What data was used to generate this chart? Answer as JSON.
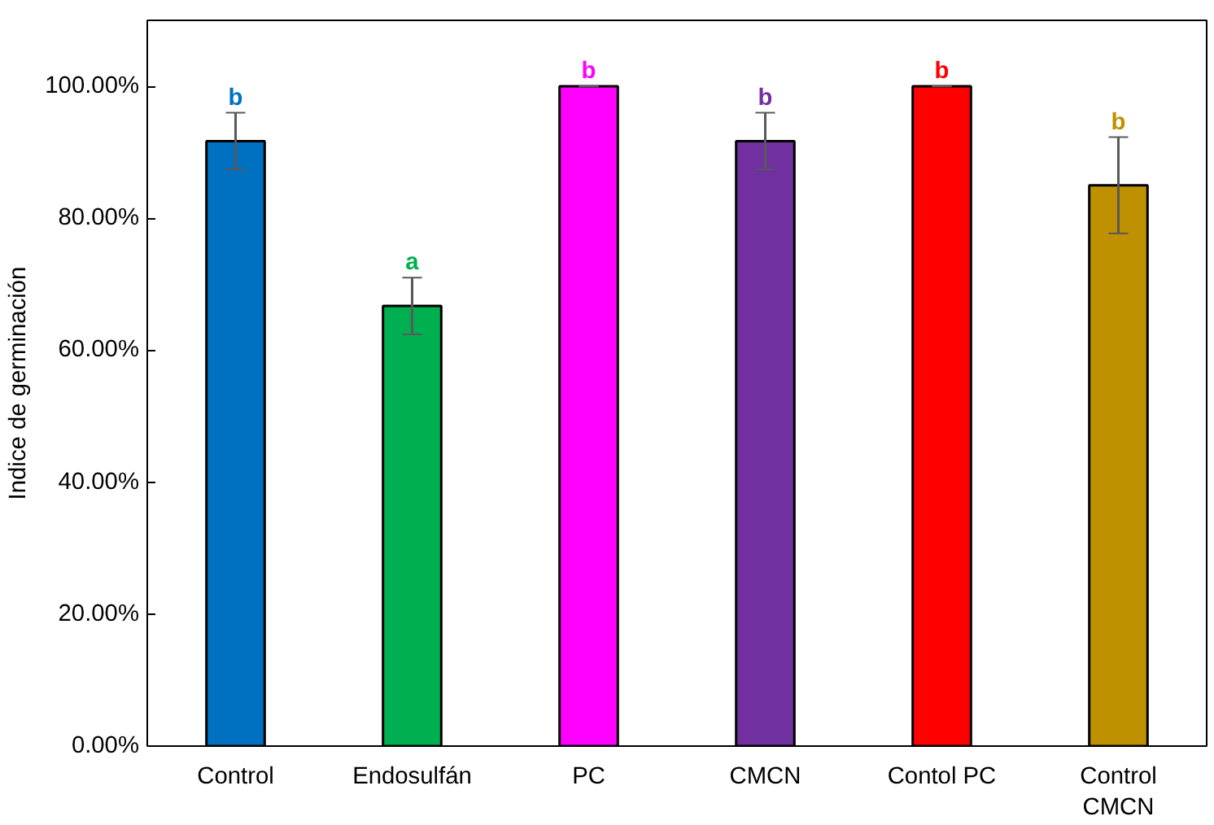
{
  "chart_data": {
    "type": "bar",
    "ylabel": "Indice de germinación",
    "categories": [
      "Control",
      "Endosulfán",
      "PC",
      "CMCN",
      "Contol PC",
      "Control\nCMCN"
    ],
    "values": [
      91.7,
      66.7,
      100,
      91.7,
      100,
      85
    ],
    "colors": [
      "#0070c0",
      "#00b050",
      "#ff00ff",
      "#7030a0",
      "#ff0000",
      "#bf9000"
    ],
    "errors": [
      4.3,
      4.3,
      0,
      4.3,
      0,
      7.3
    ],
    "ylim": [
      0,
      110
    ],
    "yticks": [
      {
        "value": 0,
        "label": "0.00%"
      },
      {
        "value": 20,
        "label": "20.00%"
      },
      {
        "value": 40,
        "label": "40.00%"
      },
      {
        "value": 60,
        "label": "60.00%"
      },
      {
        "value": 80,
        "label": "80.00%"
      },
      {
        "value": 100,
        "label": "100.00%"
      }
    ],
    "annotations": [
      {
        "text": "b",
        "x": "Control",
        "y": 96
      },
      {
        "text": "a",
        "x": "Endosulfán",
        "y": 71
      },
      {
        "text": "b",
        "x": "PC",
        "y": 100
      },
      {
        "text": "b",
        "x": "CMCN",
        "y": 96
      },
      {
        "text": "b",
        "x": "Contol PC",
        "y": 100
      },
      {
        "text": "b",
        "x": "Control\nCMCN",
        "y": 92.3
      }
    ],
    "grid": false
  }
}
